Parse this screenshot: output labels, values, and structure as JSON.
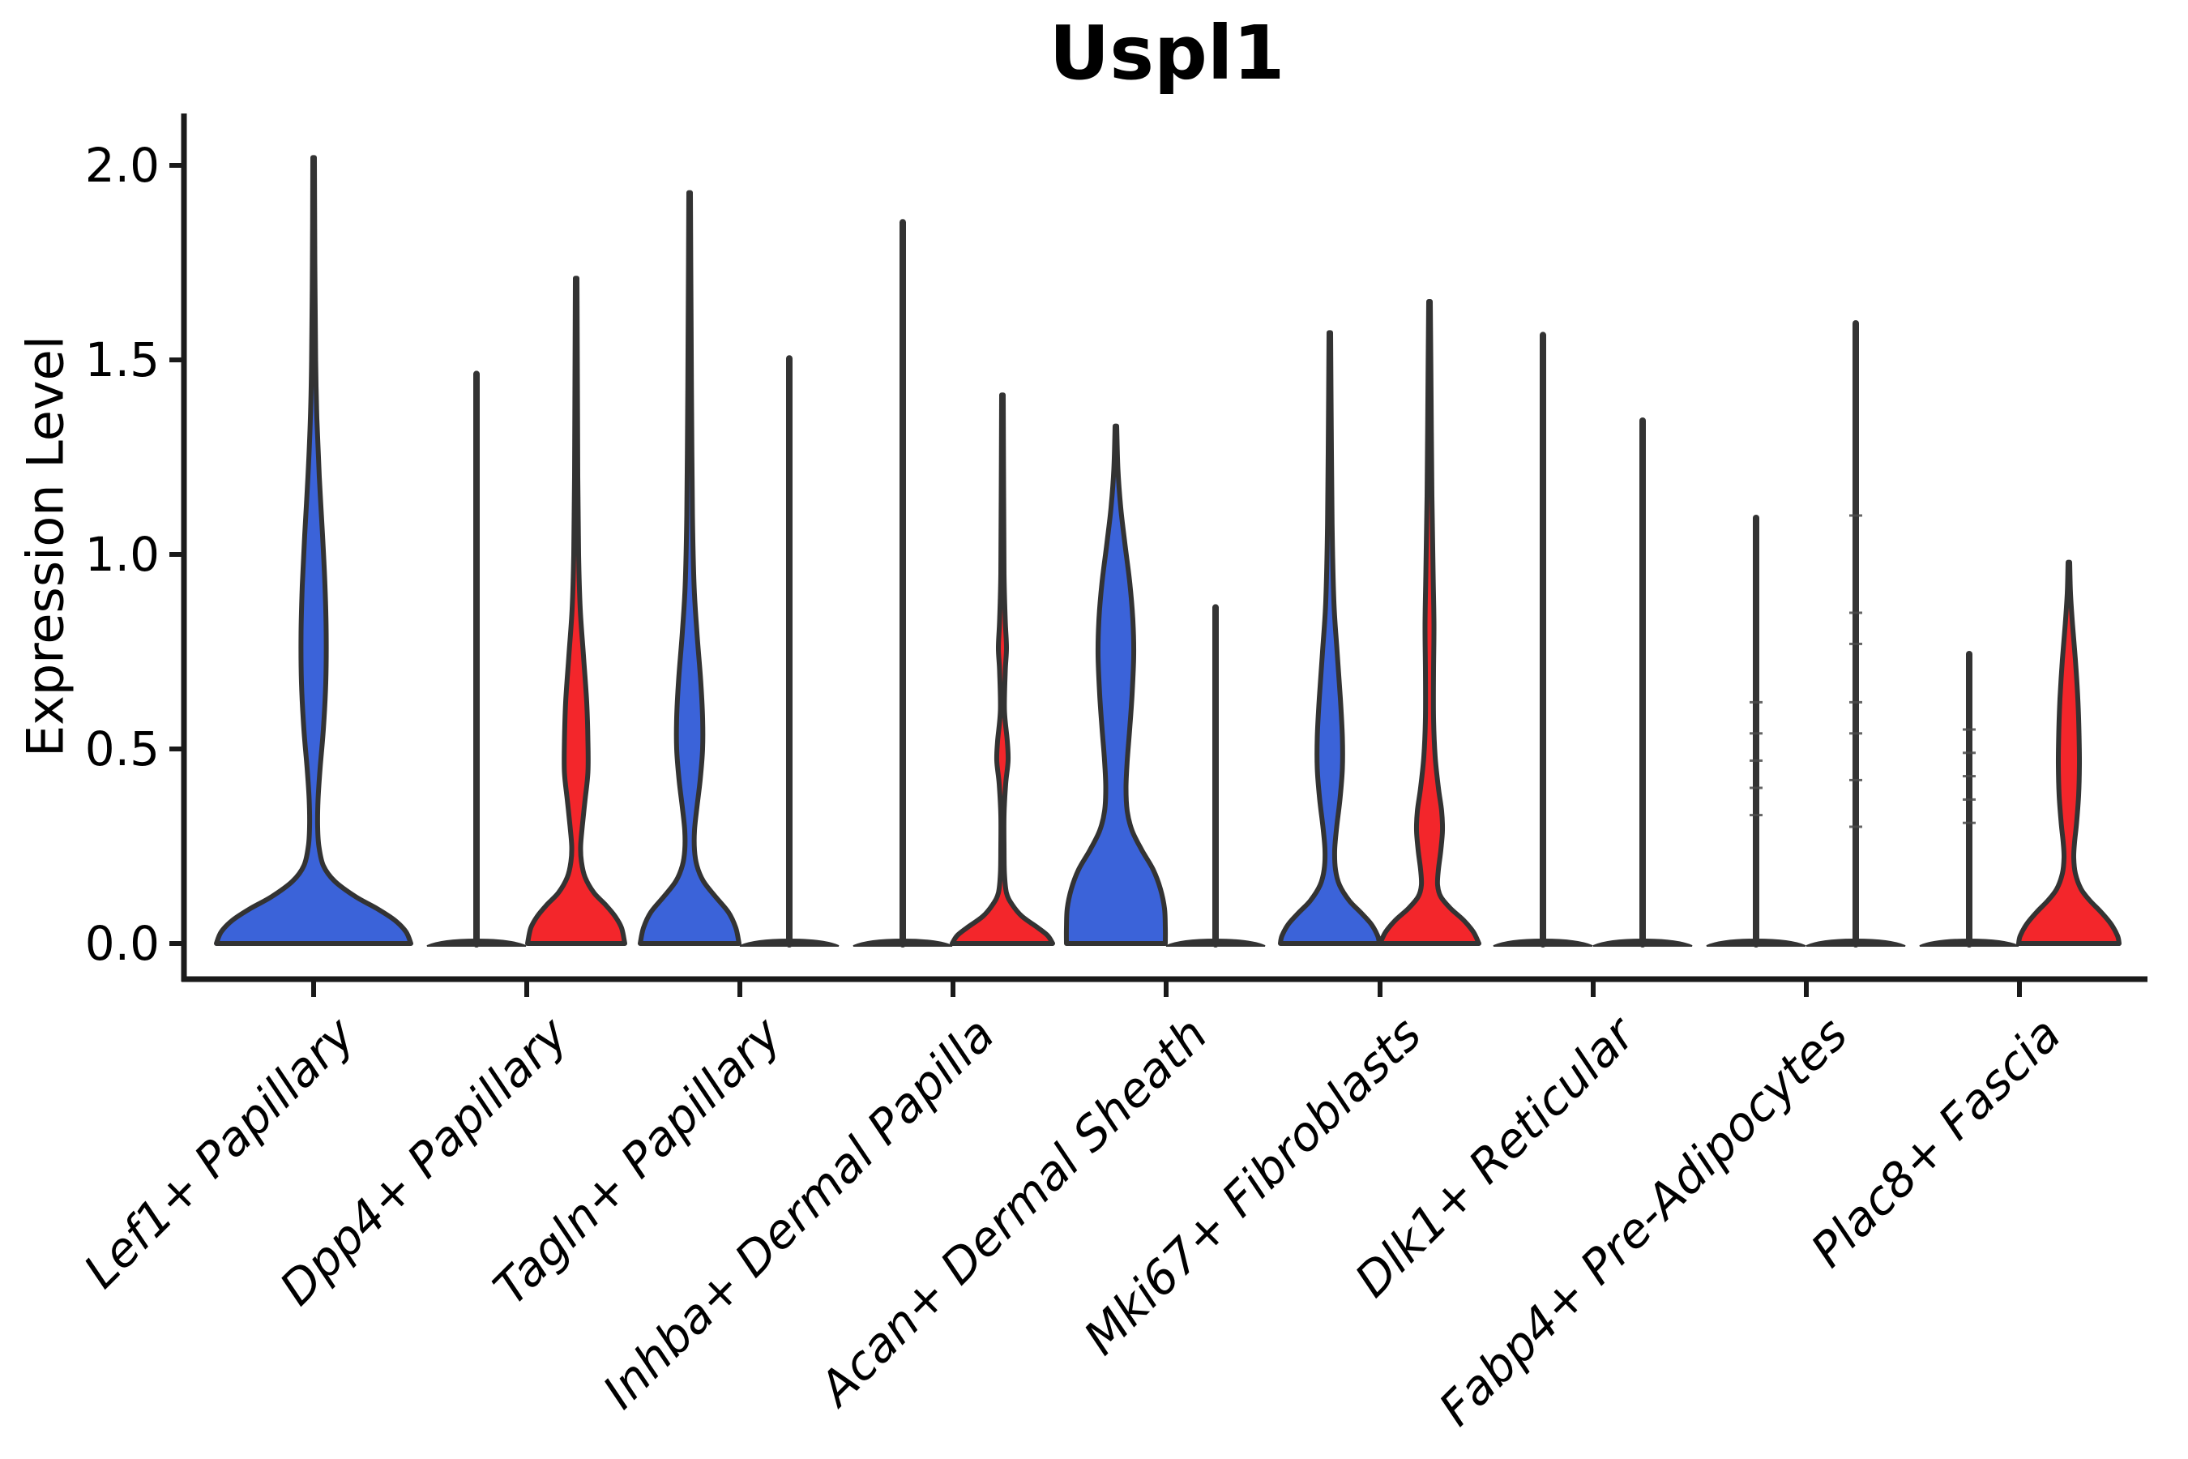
{
  "chart_data": {
    "type": "violin",
    "title": "Uspl1",
    "ylabel": "Expression Level",
    "xlabel": "",
    "yticks": [
      0.0,
      0.5,
      1.0,
      1.5,
      2.0
    ],
    "ytick_labels": [
      "0.0",
      "0.5",
      "1.0",
      "1.5",
      "2.0"
    ],
    "ylim": [
      -0.09,
      2.13
    ],
    "grid": false,
    "legend": "none",
    "colors": {
      "blue_fill": "#3B63D9",
      "red_fill": "#F3262B",
      "outline": "#333333",
      "axis": "#1a1a1a",
      "text": "#000000"
    },
    "categories": [
      {
        "label": "Lef1+ Papillary",
        "tick_x": 387,
        "violins": [
          {
            "split": "full",
            "style": "violin",
            "fill": "blue",
            "x": 387,
            "max_expression": 2.02,
            "width_profile": [
              [
                2.02,
                1
              ],
              [
                1.75,
                1.5
              ],
              [
                1.5,
                2.5
              ],
              [
                1.35,
                4
              ],
              [
                1.2,
                7
              ],
              [
                1.05,
                11
              ],
              [
                0.92,
                14
              ],
              [
                0.8,
                15.5
              ],
              [
                0.67,
                15
              ],
              [
                0.55,
                12
              ],
              [
                0.45,
                8
              ],
              [
                0.37,
                5.5
              ],
              [
                0.3,
                5
              ],
              [
                0.25,
                6.5
              ],
              [
                0.2,
                12
              ],
              [
                0.16,
                26
              ],
              [
                0.12,
                52
              ],
              [
                0.09,
                78
              ],
              [
                0.06,
                100
              ],
              [
                0.03,
                114
              ],
              [
                0,
                120
              ]
            ]
          }
        ]
      },
      {
        "label": "Dpp4+ Papillary",
        "tick_x": 650,
        "violins": [
          {
            "split": "left",
            "style": "line",
            "fill": "blue",
            "x": 588,
            "max_expression": 1.47
          },
          {
            "split": "right",
            "style": "violin",
            "fill": "red",
            "x": 711,
            "max_expression": 1.71,
            "width_profile": [
              [
                1.71,
                1
              ],
              [
                1.45,
                1.5
              ],
              [
                1.2,
                2
              ],
              [
                1.0,
                3
              ],
              [
                0.86,
                5
              ],
              [
                0.74,
                9
              ],
              [
                0.62,
                13
              ],
              [
                0.52,
                14.5
              ],
              [
                0.44,
                14.5
              ],
              [
                0.37,
                11
              ],
              [
                0.3,
                7.5
              ],
              [
                0.25,
                5.5
              ],
              [
                0.21,
                6.5
              ],
              [
                0.17,
                11
              ],
              [
                0.13,
                22
              ],
              [
                0.1,
                36
              ],
              [
                0.07,
                48
              ],
              [
                0.04,
                56
              ],
              [
                0,
                60
              ]
            ]
          }
        ]
      },
      {
        "label": "Tagln+ Papillary",
        "tick_x": 913,
        "violins": [
          {
            "split": "left",
            "style": "violin",
            "fill": "blue",
            "x": 851,
            "max_expression": 1.93,
            "width_profile": [
              [
                1.93,
                1
              ],
              [
                1.6,
                1.8
              ],
              [
                1.35,
                2.5
              ],
              [
                1.1,
                3.5
              ],
              [
                0.92,
                5.5
              ],
              [
                0.8,
                9
              ],
              [
                0.68,
                13.5
              ],
              [
                0.58,
                16
              ],
              [
                0.5,
                16
              ],
              [
                0.42,
                13
              ],
              [
                0.35,
                9
              ],
              [
                0.29,
                6
              ],
              [
                0.24,
                6
              ],
              [
                0.2,
                9
              ],
              [
                0.16,
                17
              ],
              [
                0.12,
                32
              ],
              [
                0.08,
                48
              ],
              [
                0.04,
                57
              ],
              [
                0,
                61
              ]
            ]
          },
          {
            "split": "right",
            "style": "line",
            "fill": "red",
            "x": 974,
            "max_expression": 1.51
          }
        ]
      },
      {
        "label": "Inhba+ Dermal Papilla",
        "tick_x": 1176,
        "violins": [
          {
            "split": "left",
            "style": "line",
            "fill": "blue",
            "x": 1114,
            "max_expression": 1.86
          },
          {
            "split": "right",
            "style": "violin",
            "fill": "red",
            "x": 1237,
            "max_expression": 1.41,
            "width_profile": [
              [
                1.41,
                1
              ],
              [
                1.15,
                1.5
              ],
              [
                0.95,
                2
              ],
              [
                0.83,
                3.5
              ],
              [
                0.76,
                5
              ],
              [
                0.7,
                3.5
              ],
              [
                0.6,
                2.5
              ],
              [
                0.52,
                6
              ],
              [
                0.47,
                7
              ],
              [
                0.41,
                4
              ],
              [
                0.33,
                2
              ],
              [
                0.25,
                2
              ],
              [
                0.18,
                2.5
              ],
              [
                0.13,
                5
              ],
              [
                0.1,
                12
              ],
              [
                0.07,
                24
              ],
              [
                0.04,
                44
              ],
              [
                0.02,
                56
              ],
              [
                0,
                62
              ]
            ]
          }
        ]
      },
      {
        "label": "Acan+ Dermal Sheath",
        "tick_x": 1439,
        "violins": [
          {
            "split": "left",
            "style": "violin",
            "fill": "blue",
            "x": 1377,
            "max_expression": 1.33,
            "width_profile": [
              [
                1.33,
                1
              ],
              [
                1.22,
                2.5
              ],
              [
                1.12,
                6
              ],
              [
                1.03,
                11
              ],
              [
                0.93,
                17
              ],
              [
                0.83,
                21
              ],
              [
                0.74,
                22
              ],
              [
                0.64,
                20
              ],
              [
                0.55,
                17
              ],
              [
                0.47,
                14
              ],
              [
                0.4,
                12.5
              ],
              [
                0.34,
                14
              ],
              [
                0.29,
                20
              ],
              [
                0.24,
                32
              ],
              [
                0.19,
                46
              ],
              [
                0.14,
                55
              ],
              [
                0.09,
                60
              ],
              [
                0.04,
                61
              ],
              [
                0,
                61
              ]
            ]
          },
          {
            "split": "right",
            "style": "line",
            "fill": "red",
            "x": 1500,
            "max_expression": 0.87
          }
        ]
      },
      {
        "label": "Mki67+ Fibroblasts",
        "tick_x": 1703,
        "violins": [
          {
            "split": "left",
            "style": "violin",
            "fill": "blue",
            "x": 1641,
            "max_expression": 1.57,
            "width_profile": [
              [
                1.57,
                1
              ],
              [
                1.32,
                1.8
              ],
              [
                1.08,
                2.8
              ],
              [
                0.88,
                5
              ],
              [
                0.75,
                9
              ],
              [
                0.63,
                13
              ],
              [
                0.53,
                15.5
              ],
              [
                0.45,
                15.5
              ],
              [
                0.37,
                12.5
              ],
              [
                0.3,
                8.5
              ],
              [
                0.24,
                6
              ],
              [
                0.19,
                7
              ],
              [
                0.15,
                12
              ],
              [
                0.11,
                24
              ],
              [
                0.08,
                38
              ],
              [
                0.05,
                51
              ],
              [
                0.02,
                59
              ],
              [
                0,
                61
              ]
            ]
          },
          {
            "split": "right",
            "style": "violin",
            "fill": "red",
            "x": 1764,
            "max_expression": 1.65,
            "width_profile": [
              [
                1.65,
                1
              ],
              [
                1.4,
                2
              ],
              [
                1.15,
                3
              ],
              [
                0.95,
                4.5
              ],
              [
                0.82,
                5.5
              ],
              [
                0.7,
                5
              ],
              [
                0.58,
                5
              ],
              [
                0.48,
                7
              ],
              [
                0.4,
                11
              ],
              [
                0.34,
                15
              ],
              [
                0.29,
                16
              ],
              [
                0.24,
                14
              ],
              [
                0.19,
                11
              ],
              [
                0.15,
                10
              ],
              [
                0.12,
                14
              ],
              [
                0.09,
                26
              ],
              [
                0.06,
                42
              ],
              [
                0.03,
                54
              ],
              [
                0,
                61
              ]
            ]
          }
        ]
      },
      {
        "label": "Dlk1+ Reticular",
        "tick_x": 1966,
        "violins": [
          {
            "split": "left",
            "style": "line",
            "fill": "blue",
            "x": 1904,
            "max_expression": 1.57
          },
          {
            "split": "right",
            "style": "line",
            "fill": "red",
            "x": 2027,
            "max_expression": 1.35
          }
        ]
      },
      {
        "label": "Fabp4+ Pre-Adipocytes",
        "tick_x": 2229,
        "violins": [
          {
            "split": "left",
            "style": "line",
            "fill": "blue",
            "x": 2167,
            "max_expression": 1.1,
            "point_dashes": [
              0.62,
              0.54,
              0.47,
              0.4,
              0.33
            ]
          },
          {
            "split": "right",
            "style": "line",
            "fill": "red",
            "x": 2290,
            "max_expression": 1.6,
            "point_dashes": [
              1.1,
              0.85,
              0.77,
              0.62,
              0.54,
              0.42,
              0.3
            ]
          }
        ]
      },
      {
        "label": "Plac8+ Fascia",
        "tick_x": 2492,
        "violins": [
          {
            "split": "left",
            "style": "line",
            "fill": "blue",
            "x": 2430,
            "max_expression": 0.75,
            "point_dashes": [
              0.55,
              0.49,
              0.43,
              0.37,
              0.31
            ]
          },
          {
            "split": "right",
            "style": "violin",
            "fill": "red",
            "x": 2553,
            "max_expression": 0.98,
            "width_profile": [
              [
                0.98,
                1
              ],
              [
                0.9,
                2
              ],
              [
                0.82,
                4.5
              ],
              [
                0.73,
                8
              ],
              [
                0.63,
                11
              ],
              [
                0.54,
                12.5
              ],
              [
                0.46,
                13
              ],
              [
                0.38,
                12
              ],
              [
                0.31,
                9.5
              ],
              [
                0.26,
                7
              ],
              [
                0.22,
                6
              ],
              [
                0.18,
                8
              ],
              [
                0.14,
                15
              ],
              [
                0.11,
                26
              ],
              [
                0.08,
                40
              ],
              [
                0.05,
                52
              ],
              [
                0.02,
                60
              ],
              [
                0,
                62
              ]
            ]
          }
        ]
      }
    ]
  }
}
